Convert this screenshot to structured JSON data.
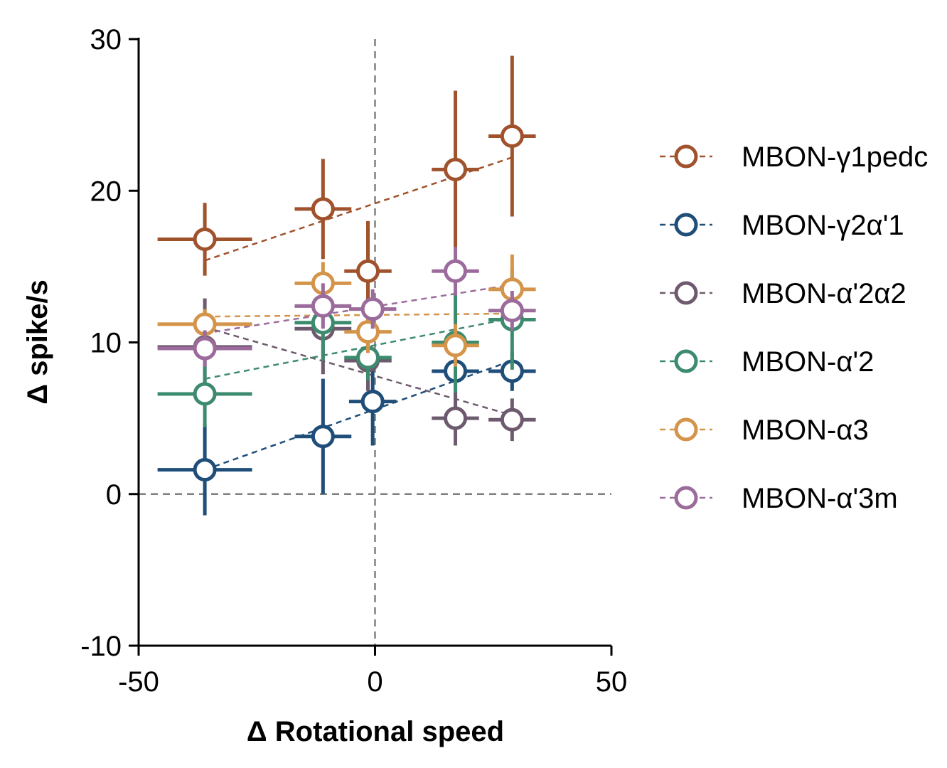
{
  "chart_data": {
    "type": "scatter",
    "title": "",
    "xlabel": "Δ Rotational speed",
    "ylabel": "Δ spike/s",
    "xlim": [
      -50,
      50
    ],
    "ylim": [
      -10,
      30
    ],
    "xticks": [
      "-50",
      "0",
      "50"
    ],
    "yticks": [
      "-10",
      "0",
      "10",
      "20",
      "30"
    ],
    "reference_lines": {
      "x": 0,
      "y": 0,
      "style": "dashed"
    },
    "legend_position": "right",
    "series": [
      {
        "name": "MBON-γ1pedc",
        "color": "#A0522D",
        "points": [
          {
            "x": -36,
            "y": 16.8,
            "xerr": 10,
            "yerr": 2.4
          },
          {
            "x": -11,
            "y": 18.8,
            "xerr": 6,
            "yerr": 3.3
          },
          {
            "x": -1.5,
            "y": 14.7,
            "xerr": 5,
            "yerr": 3.3
          },
          {
            "x": 17,
            "y": 21.4,
            "xerr": 5,
            "yerr": 5.2
          },
          {
            "x": 29,
            "y": 23.6,
            "xerr": 5,
            "yerr": 5.3
          }
        ],
        "fit": [
          [
            -36,
            15.4
          ],
          [
            29,
            22.2
          ]
        ]
      },
      {
        "name": "MBON-γ2α'1",
        "color": "#1F4E79",
        "points": [
          {
            "x": -36,
            "y": 1.6,
            "xerr": 10,
            "yerr": 3.0
          },
          {
            "x": -11,
            "y": 3.8,
            "xerr": 6,
            "yerr": 3.8
          },
          {
            "x": -0.5,
            "y": 6.1,
            "xerr": 5,
            "yerr": 2.9
          },
          {
            "x": 17,
            "y": 8.1,
            "xerr": 5,
            "yerr": 2.6
          },
          {
            "x": 29,
            "y": 8.1,
            "xerr": 5,
            "yerr": 1.3
          }
        ],
        "fit": [
          [
            -36,
            1.6
          ],
          [
            29,
            8.8
          ]
        ]
      },
      {
        "name": "MBON-α'2α2",
        "color": "#6E5A6E",
        "points": [
          {
            "x": -36,
            "y": 9.7,
            "xerr": 10,
            "yerr": 3.2
          },
          {
            "x": -11,
            "y": 10.9,
            "xerr": 6,
            "yerr": 3.0
          },
          {
            "x": -1.5,
            "y": 8.8,
            "xerr": 5,
            "yerr": 2.0
          },
          {
            "x": 17,
            "y": 5.0,
            "xerr": 5,
            "yerr": 1.8
          },
          {
            "x": 29,
            "y": 4.9,
            "xerr": 5,
            "yerr": 1.4
          }
        ],
        "fit": [
          [
            -36,
            11.0
          ],
          [
            29,
            5.2
          ]
        ]
      },
      {
        "name": "MBON-α'2",
        "color": "#3D8B6E",
        "points": [
          {
            "x": -36,
            "y": 6.6,
            "xerr": 10,
            "yerr": 2.2
          },
          {
            "x": -11,
            "y": 11.3,
            "xerr": 6,
            "yerr": 2.5
          },
          {
            "x": -1.5,
            "y": 9.0,
            "xerr": 5,
            "yerr": 1.5
          },
          {
            "x": 17,
            "y": 10.0,
            "xerr": 5,
            "yerr": 3.3
          },
          {
            "x": 29,
            "y": 11.5,
            "xerr": 5,
            "yerr": 3.3
          }
        ],
        "fit": [
          [
            -36,
            7.6
          ],
          [
            29,
            11.6
          ]
        ]
      },
      {
        "name": "MBON-α3",
        "color": "#D4944A",
        "points": [
          {
            "x": -36,
            "y": 11.2,
            "xerr": 10,
            "yerr": 1.0
          },
          {
            "x": -11,
            "y": 13.9,
            "xerr": 6,
            "yerr": 1.4
          },
          {
            "x": -1.5,
            "y": 10.7,
            "xerr": 5,
            "yerr": 1.4
          },
          {
            "x": 17,
            "y": 9.8,
            "xerr": 5,
            "yerr": 1.4
          },
          {
            "x": 29,
            "y": 13.5,
            "xerr": 5,
            "yerr": 2.3
          }
        ],
        "fit": [
          [
            -36,
            11.7
          ],
          [
            29,
            11.9
          ]
        ]
      },
      {
        "name": "MBON-α'3m",
        "color": "#9B6B9B",
        "points": [
          {
            "x": -36,
            "y": 9.6,
            "xerr": 10,
            "yerr": 1.2
          },
          {
            "x": -11,
            "y": 12.4,
            "xerr": 6,
            "yerr": 1.5
          },
          {
            "x": -0.5,
            "y": 12.2,
            "xerr": 5,
            "yerr": 1.3
          },
          {
            "x": 17,
            "y": 14.7,
            "xerr": 5,
            "yerr": 1.6
          },
          {
            "x": 29,
            "y": 12.1,
            "xerr": 5,
            "yerr": 1.3
          }
        ],
        "fit": [
          [
            -36,
            10.6
          ],
          [
            29,
            13.8
          ]
        ]
      }
    ]
  }
}
